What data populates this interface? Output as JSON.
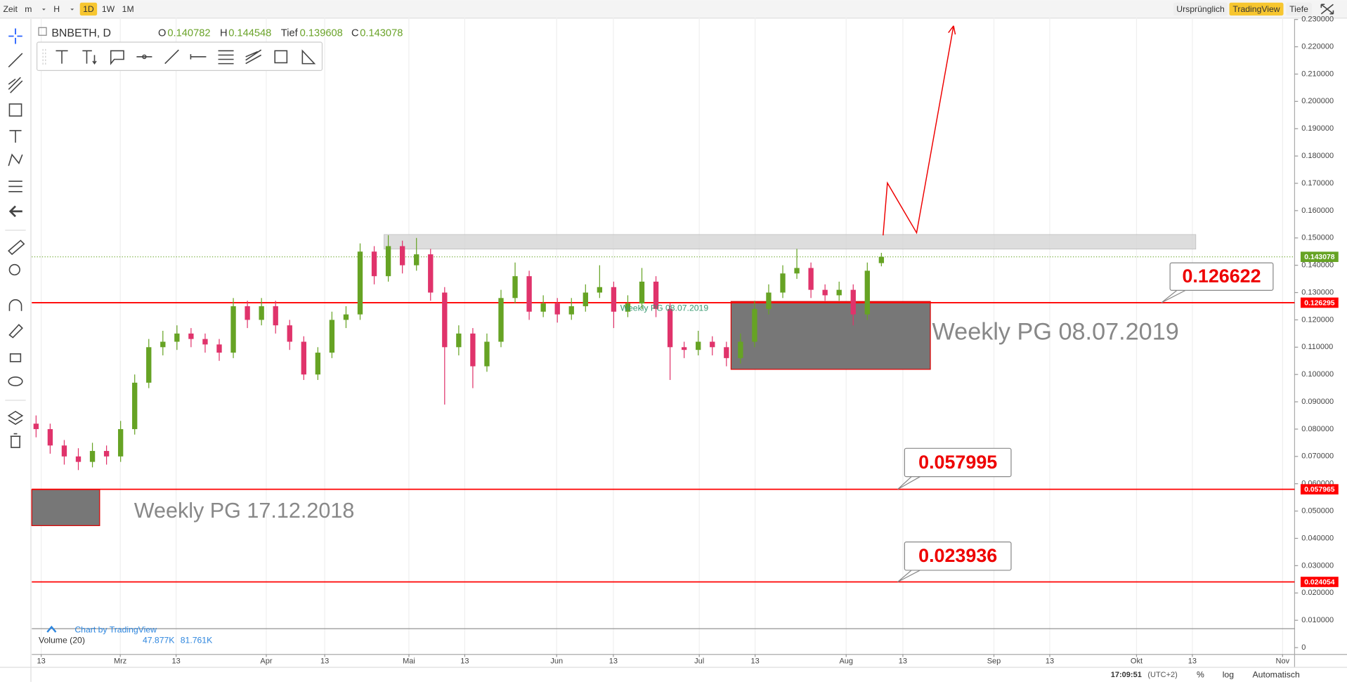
{
  "toolbar": {
    "left": [
      "Zeit",
      "m",
      "H",
      "1D",
      "1W",
      "1M"
    ],
    "left_active": 3,
    "right": [
      "Ursprünglich",
      "TradingView",
      "Tiefe"
    ],
    "right_active": 1
  },
  "legend": {
    "symbol": "BNBETH, D",
    "labels": [
      "O",
      "H",
      "Tief",
      "C"
    ]
  },
  "chart_data": {
    "type": "candlestick",
    "up_color": "#66a324",
    "down_color": "#e0336b",
    "candles": [
      [
        0.082,
        0.085,
        0.077,
        0.08
      ],
      [
        0.08,
        0.082,
        0.071,
        0.074
      ],
      [
        0.074,
        0.076,
        0.067,
        0.07
      ],
      [
        0.07,
        0.073,
        0.065,
        0.068
      ],
      [
        0.068,
        0.075,
        0.066,
        0.072
      ],
      [
        0.072,
        0.074,
        0.067,
        0.07
      ],
      [
        0.07,
        0.083,
        0.068,
        0.08
      ],
      [
        0.08,
        0.1,
        0.078,
        0.097
      ],
      [
        0.097,
        0.113,
        0.095,
        0.11
      ],
      [
        0.11,
        0.116,
        0.107,
        0.112
      ],
      [
        0.112,
        0.118,
        0.109,
        0.115
      ],
      [
        0.115,
        0.117,
        0.11,
        0.113
      ],
      [
        0.113,
        0.115,
        0.108,
        0.111
      ],
      [
        0.111,
        0.113,
        0.105,
        0.108
      ],
      [
        0.108,
        0.128,
        0.106,
        0.125
      ],
      [
        0.125,
        0.127,
        0.117,
        0.12
      ],
      [
        0.12,
        0.128,
        0.118,
        0.125
      ],
      [
        0.125,
        0.127,
        0.115,
        0.118
      ],
      [
        0.118,
        0.12,
        0.109,
        0.112
      ],
      [
        0.112,
        0.114,
        0.098,
        0.1
      ],
      [
        0.1,
        0.11,
        0.098,
        0.108
      ],
      [
        0.108,
        0.123,
        0.106,
        0.12
      ],
      [
        0.12,
        0.125,
        0.117,
        0.122
      ],
      [
        0.122,
        0.148,
        0.12,
        0.145
      ],
      [
        0.145,
        0.147,
        0.133,
        0.136
      ],
      [
        0.136,
        0.151,
        0.134,
        0.147
      ],
      [
        0.147,
        0.149,
        0.137,
        0.14
      ],
      [
        0.14,
        0.15,
        0.138,
        0.144
      ],
      [
        0.144,
        0.146,
        0.127,
        0.13
      ],
      [
        0.13,
        0.132,
        0.089,
        0.11
      ],
      [
        0.11,
        0.118,
        0.107,
        0.115
      ],
      [
        0.115,
        0.117,
        0.095,
        0.103
      ],
      [
        0.103,
        0.115,
        0.101,
        0.112
      ],
      [
        0.112,
        0.131,
        0.11,
        0.128
      ],
      [
        0.128,
        0.141,
        0.126,
        0.136
      ],
      [
        0.136,
        0.138,
        0.12,
        0.123
      ],
      [
        0.123,
        0.129,
        0.121,
        0.126
      ],
      [
        0.126,
        0.128,
        0.119,
        0.122
      ],
      [
        0.122,
        0.128,
        0.12,
        0.125
      ],
      [
        0.125,
        0.133,
        0.123,
        0.13
      ],
      [
        0.13,
        0.14,
        0.128,
        0.132
      ],
      [
        0.132,
        0.134,
        0.117,
        0.123
      ],
      [
        0.123,
        0.129,
        0.121,
        0.126
      ],
      [
        0.126,
        0.139,
        0.124,
        0.134
      ],
      [
        0.134,
        0.136,
        0.121,
        0.124
      ],
      [
        0.124,
        0.126,
        0.098,
        0.11
      ],
      [
        0.11,
        0.112,
        0.106,
        0.109
      ],
      [
        0.109,
        0.116,
        0.107,
        0.112
      ],
      [
        0.112,
        0.114,
        0.107,
        0.11
      ],
      [
        0.11,
        0.112,
        0.103,
        0.106
      ],
      [
        0.106,
        0.115,
        0.104,
        0.112
      ],
      [
        0.112,
        0.127,
        0.11,
        0.124
      ],
      [
        0.124,
        0.133,
        0.122,
        0.13
      ],
      [
        0.13,
        0.14,
        0.128,
        0.137
      ],
      [
        0.137,
        0.146,
        0.135,
        0.139
      ],
      [
        0.139,
        0.141,
        0.128,
        0.131
      ],
      [
        0.131,
        0.133,
        0.127,
        0.129
      ],
      [
        0.129,
        0.134,
        0.127,
        0.131
      ],
      [
        0.131,
        0.133,
        0.118,
        0.122
      ],
      [
        0.122,
        0.141,
        0.12,
        0.138
      ],
      [
        0.140782,
        0.144548,
        0.139608,
        0.143078
      ]
    ],
    "ylim": [
      -0.0025,
      0.2308
    ],
    "yticks": [
      {
        "value": 0.23,
        "label": "0.230000"
      },
      {
        "value": 0.22,
        "label": "0.220000"
      },
      {
        "value": 0.21,
        "label": "0.210000"
      },
      {
        "value": 0.2,
        "label": "0.200000"
      },
      {
        "value": 0.19,
        "label": "0.190000"
      },
      {
        "value": 0.18,
        "label": "0.180000"
      },
      {
        "value": 0.17,
        "label": "0.170000"
      },
      {
        "value": 0.16,
        "label": "0.160000"
      },
      {
        "value": 0.15,
        "label": "0.150000"
      },
      {
        "value": 0.14,
        "label": "0.140000"
      },
      {
        "value": 0.13,
        "label": "0.130000"
      },
      {
        "value": 0.12,
        "label": "0.120000"
      },
      {
        "value": 0.11,
        "label": "0.110000"
      },
      {
        "value": 0.1,
        "label": "0.100000"
      },
      {
        "value": 0.09,
        "label": "0.090000"
      },
      {
        "value": 0.08,
        "label": "0.080000"
      },
      {
        "value": 0.07,
        "label": "0.070000"
      },
      {
        "value": 0.06,
        "label": "0.060000"
      },
      {
        "value": 0.05,
        "label": "0.050000"
      },
      {
        "value": 0.04,
        "label": "0.040000"
      },
      {
        "value": 0.03,
        "label": "0.030000"
      },
      {
        "value": 0.02,
        "label": "0.020000"
      },
      {
        "value": 0.01,
        "label": "0.010000"
      },
      0
    ],
    "grid": true,
    "levels": [
      0.126295,
      0.057965,
      0.024054
    ],
    "level_color": "#ff0000",
    "callouts": [
      0.126622,
      0.057995,
      0.023936
    ],
    "time_axis": [
      "13",
      "Mrz",
      "13",
      "Apr",
      "13",
      "Mai",
      "13",
      "Jun",
      "13",
      "Jul",
      "13",
      "Aug",
      "13",
      "Sep",
      "13",
      "Okt",
      "13",
      "Nov"
    ]
  },
  "annotations": {
    "zone_2019": "Weekly PG 08.07.2019",
    "zone_2018": "Weekly PG 17.12.2018"
  },
  "watermark": "Chart by TradingView",
  "volume": {
    "label": "Volume (20)",
    "values": [
      "47.877K",
      "81.761K"
    ]
  },
  "status": {
    "time": "17:09:51",
    "timezone": "(UTC+2)",
    "percent": "%",
    "log": "log",
    "scale": "Automatisch"
  }
}
